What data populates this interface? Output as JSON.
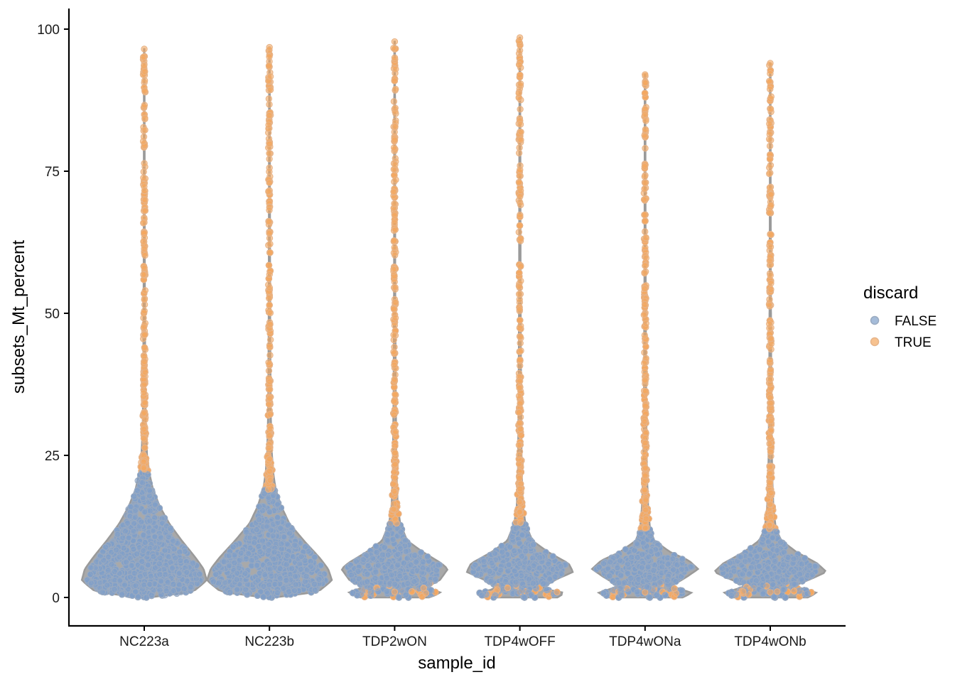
{
  "chart_data": {
    "type": "violin",
    "title": "",
    "xlabel": "sample_id",
    "ylabel": "subsets_Mt_percent",
    "ylim": [
      -4.5,
      103.5
    ],
    "yticks": [
      0,
      25,
      50,
      75,
      100
    ],
    "yticklabels": [
      "0",
      "25",
      "50",
      "75",
      "100"
    ],
    "categories": [
      "NC223a",
      "NC223b",
      "TDP2wON",
      "TDP4wOFF",
      "TDP4wONa",
      "TDP4wONb"
    ],
    "legend": {
      "title": "discard",
      "position": "right",
      "entries": [
        {
          "label": "FALSE",
          "color": "#7f9fc9"
        },
        {
          "label": "TRUE",
          "color": "#f4a860"
        }
      ]
    },
    "colors": {
      "violin_fill": "#a9a9a9",
      "violin_stroke": "#9a9a9a",
      "false_point": "#7f9fc9",
      "true_point": "#f4a860"
    },
    "series": [
      {
        "name": "NC223a",
        "max": 96.5,
        "threshold": 22,
        "density": [
          [
            0,
            0.08
          ],
          [
            1,
            0.78
          ],
          [
            3,
            1.0
          ],
          [
            5,
            0.95
          ],
          [
            7,
            0.82
          ],
          [
            10,
            0.6
          ],
          [
            13,
            0.4
          ],
          [
            16,
            0.25
          ],
          [
            19,
            0.14
          ],
          [
            22,
            0.08
          ],
          [
            25,
            0.045
          ],
          [
            30,
            0.025
          ],
          [
            40,
            0.015
          ],
          [
            55,
            0.01
          ],
          [
            75,
            0.007
          ],
          [
            96.5,
            0.005
          ]
        ]
      },
      {
        "name": "NC223b",
        "max": 96.8,
        "threshold": 19,
        "density": [
          [
            0,
            0.08
          ],
          [
            1,
            0.78
          ],
          [
            3,
            1.0
          ],
          [
            5,
            0.94
          ],
          [
            7,
            0.8
          ],
          [
            10,
            0.55
          ],
          [
            13,
            0.32
          ],
          [
            16,
            0.19
          ],
          [
            19,
            0.1
          ],
          [
            22,
            0.06
          ],
          [
            26,
            0.035
          ],
          [
            32,
            0.022
          ],
          [
            45,
            0.014
          ],
          [
            60,
            0.01
          ],
          [
            80,
            0.007
          ],
          [
            96.8,
            0.005
          ]
        ]
      },
      {
        "name": "TDP2wON",
        "max": 97.8,
        "threshold": 13,
        "density": [
          [
            0,
            0.55
          ],
          [
            0.8,
            0.75
          ],
          [
            1.8,
            0.5
          ],
          [
            3,
            0.72
          ],
          [
            5,
            0.85
          ],
          [
            6,
            0.75
          ],
          [
            8,
            0.45
          ],
          [
            10,
            0.2
          ],
          [
            13,
            0.09
          ],
          [
            16,
            0.05
          ],
          [
            22,
            0.03
          ],
          [
            35,
            0.018
          ],
          [
            55,
            0.01
          ],
          [
            75,
            0.008
          ],
          [
            97.8,
            0.005
          ]
        ]
      },
      {
        "name": "TDP4wOFF",
        "max": 98.5,
        "threshold": 13,
        "density": [
          [
            0,
            0.6
          ],
          [
            0.8,
            0.72
          ],
          [
            1.6,
            0.35
          ],
          [
            3,
            0.55
          ],
          [
            4.5,
            0.85
          ],
          [
            6,
            0.78
          ],
          [
            8,
            0.45
          ],
          [
            10,
            0.2
          ],
          [
            13,
            0.09
          ],
          [
            16,
            0.05
          ],
          [
            22,
            0.03
          ],
          [
            35,
            0.02
          ],
          [
            55,
            0.012
          ],
          [
            75,
            0.009
          ],
          [
            98.5,
            0.005
          ]
        ]
      },
      {
        "name": "TDP4wONa",
        "max": 92.0,
        "threshold": 12,
        "density": [
          [
            0,
            0.6
          ],
          [
            0.8,
            0.75
          ],
          [
            2,
            0.42
          ],
          [
            3.5,
            0.65
          ],
          [
            5,
            0.85
          ],
          [
            6.5,
            0.7
          ],
          [
            8,
            0.4
          ],
          [
            10,
            0.15
          ],
          [
            12,
            0.08
          ],
          [
            16,
            0.05
          ],
          [
            22,
            0.03
          ],
          [
            35,
            0.018
          ],
          [
            55,
            0.01
          ],
          [
            75,
            0.007
          ],
          [
            92,
            0.005
          ]
        ]
      },
      {
        "name": "TDP4wONb",
        "max": 94.0,
        "threshold": 12,
        "density": [
          [
            0,
            0.6
          ],
          [
            0.8,
            0.75
          ],
          [
            2,
            0.38
          ],
          [
            3.5,
            0.7
          ],
          [
            4.5,
            0.9
          ],
          [
            6,
            0.75
          ],
          [
            8,
            0.42
          ],
          [
            10,
            0.18
          ],
          [
            12,
            0.09
          ],
          [
            16,
            0.05
          ],
          [
            22,
            0.03
          ],
          [
            35,
            0.018
          ],
          [
            55,
            0.01
          ],
          [
            75,
            0.007
          ],
          [
            94,
            0.005
          ]
        ]
      }
    ]
  }
}
